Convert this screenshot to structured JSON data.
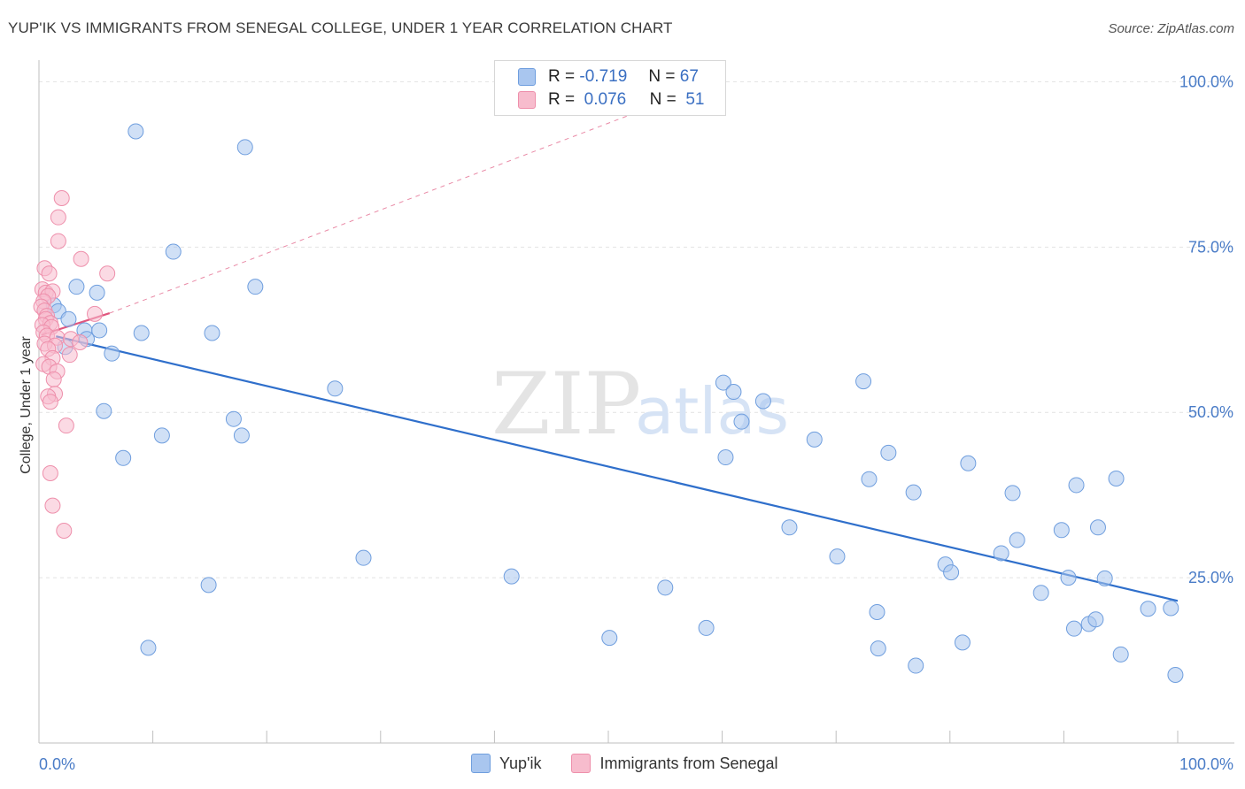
{
  "title": "YUP'IK VS IMMIGRANTS FROM SENEGAL COLLEGE, UNDER 1 YEAR CORRELATION CHART",
  "source": "Source: ZipAtlas.com",
  "watermark": {
    "zip": "ZIP",
    "atlas": "atlas"
  },
  "legend": {
    "rows": [
      {
        "r_label": "R =",
        "r_value": "-0.719",
        "n_label": "N =",
        "n_value": "67",
        "color": "#a9c6ef",
        "border": "#6f9ede"
      },
      {
        "r_label": "R =",
        "r_value": "0.076",
        "n_label": "N =",
        "n_value": "51",
        "color": "#f7bccd",
        "border": "#ee8fab"
      }
    ]
  },
  "bottom_legend": [
    {
      "label": "Yup'ik",
      "color": "#a9c6ef",
      "border": "#6f9ede"
    },
    {
      "label": "Immigrants from Senegal",
      "color": "#f7bccd",
      "border": "#ee8fab"
    }
  ],
  "chart_data": {
    "type": "scatter",
    "title": "YUP'IK VS IMMIGRANTS FROM SENEGAL COLLEGE, UNDER 1 YEAR CORRELATION CHART",
    "xlabel": "",
    "ylabel": "College, Under 1 year",
    "xlim": [
      0,
      100
    ],
    "ylim": [
      0,
      103
    ],
    "x_tick_labels": [
      "0.0%",
      "100.0%"
    ],
    "y_ticks": [
      {
        "value": 25,
        "label": "25.0%"
      },
      {
        "value": 50,
        "label": "50.0%"
      },
      {
        "value": 75,
        "label": "75.0%"
      },
      {
        "value": 100,
        "label": "100.0%"
      }
    ],
    "grid": true,
    "series": [
      {
        "name": "Yup'ik",
        "color": "#a9c6ef",
        "stroke": "#6f9ede",
        "trend": {
          "x": [
            1.5,
            100
          ],
          "y": [
            61.5,
            21.5
          ],
          "color": "#2f6fcb"
        },
        "points": [
          [
            8.5,
            92.5
          ],
          [
            18.1,
            90.1
          ],
          [
            11.8,
            74.3
          ],
          [
            19.0,
            69.0
          ],
          [
            3.3,
            69.0
          ],
          [
            5.1,
            68.1
          ],
          [
            1.3,
            66.2
          ],
          [
            1.7,
            65.3
          ],
          [
            2.6,
            64.1
          ],
          [
            4.0,
            62.4
          ],
          [
            5.3,
            62.4
          ],
          [
            9.0,
            62.0
          ],
          [
            15.2,
            62.0
          ],
          [
            4.2,
            61.1
          ],
          [
            2.3,
            59.9
          ],
          [
            6.4,
            58.9
          ],
          [
            26.0,
            53.6
          ],
          [
            5.7,
            50.2
          ],
          [
            17.1,
            49.0
          ],
          [
            10.8,
            46.5
          ],
          [
            17.8,
            46.5
          ],
          [
            7.4,
            43.1
          ],
          [
            14.9,
            23.9
          ],
          [
            9.6,
            14.4
          ],
          [
            28.5,
            28.0
          ],
          [
            41.5,
            25.2
          ],
          [
            50.1,
            15.9
          ],
          [
            55.0,
            23.5
          ],
          [
            58.6,
            17.4
          ],
          [
            60.1,
            54.5
          ],
          [
            60.3,
            43.2
          ],
          [
            61.0,
            53.1
          ],
          [
            61.7,
            48.6
          ],
          [
            63.6,
            51.7
          ],
          [
            65.9,
            32.6
          ],
          [
            68.1,
            45.9
          ],
          [
            70.1,
            28.2
          ],
          [
            72.4,
            54.7
          ],
          [
            72.9,
            39.9
          ],
          [
            73.6,
            19.8
          ],
          [
            73.7,
            14.3
          ],
          [
            74.6,
            43.9
          ],
          [
            76.8,
            37.9
          ],
          [
            77.0,
            11.7
          ],
          [
            79.6,
            27.0
          ],
          [
            80.1,
            25.8
          ],
          [
            81.1,
            15.2
          ],
          [
            81.6,
            42.3
          ],
          [
            84.5,
            28.7
          ],
          [
            85.5,
            37.8
          ],
          [
            85.9,
            30.7
          ],
          [
            88.0,
            22.7
          ],
          [
            89.8,
            32.2
          ],
          [
            90.4,
            25.0
          ],
          [
            90.9,
            17.3
          ],
          [
            91.1,
            39.0
          ],
          [
            92.2,
            18.0
          ],
          [
            92.8,
            18.7
          ],
          [
            93.0,
            32.6
          ],
          [
            93.6,
            24.9
          ],
          [
            94.6,
            40.0
          ],
          [
            95.0,
            13.4
          ],
          [
            97.4,
            20.3
          ],
          [
            99.4,
            20.4
          ],
          [
            99.8,
            10.3
          ]
        ]
      },
      {
        "name": "Immigrants from Senegal",
        "color": "#f7bccd",
        "stroke": "#ee8fab",
        "trend": {
          "x": [
            0.2,
            6.2
          ],
          "y": [
            61.7,
            65.0
          ],
          "color": "#e0567e"
        },
        "trend_ext": {
          "x": [
            6.2,
            56.5
          ],
          "y": [
            65.0,
            98.0
          ],
          "color": "#e98aa6"
        },
        "points": [
          [
            2.0,
            82.4
          ],
          [
            1.7,
            79.5
          ],
          [
            1.7,
            75.9
          ],
          [
            3.7,
            73.2
          ],
          [
            0.5,
            71.8
          ],
          [
            0.9,
            71.0
          ],
          [
            6.0,
            71.0
          ],
          [
            0.3,
            68.6
          ],
          [
            0.6,
            68.1
          ],
          [
            1.2,
            68.3
          ],
          [
            0.8,
            67.6
          ],
          [
            0.4,
            66.8
          ],
          [
            0.2,
            66.0
          ],
          [
            0.5,
            65.4
          ],
          [
            0.7,
            64.6
          ],
          [
            4.9,
            64.9
          ],
          [
            0.6,
            64.1
          ],
          [
            1.0,
            63.5
          ],
          [
            0.3,
            63.2
          ],
          [
            1.1,
            62.9
          ],
          [
            0.4,
            62.1
          ],
          [
            0.7,
            61.6
          ],
          [
            1.6,
            61.3
          ],
          [
            2.8,
            61.1
          ],
          [
            0.5,
            60.4
          ],
          [
            1.4,
            60.1
          ],
          [
            3.6,
            60.6
          ],
          [
            0.8,
            59.6
          ],
          [
            2.7,
            58.7
          ],
          [
            1.2,
            58.2
          ],
          [
            0.4,
            57.3
          ],
          [
            0.9,
            56.9
          ],
          [
            1.6,
            56.2
          ],
          [
            1.3,
            55.0
          ],
          [
            1.4,
            52.8
          ],
          [
            0.8,
            52.4
          ],
          [
            1.0,
            51.6
          ],
          [
            2.4,
            48.0
          ],
          [
            1.0,
            40.8
          ],
          [
            1.2,
            35.9
          ],
          [
            2.2,
            32.1
          ]
        ]
      }
    ]
  }
}
